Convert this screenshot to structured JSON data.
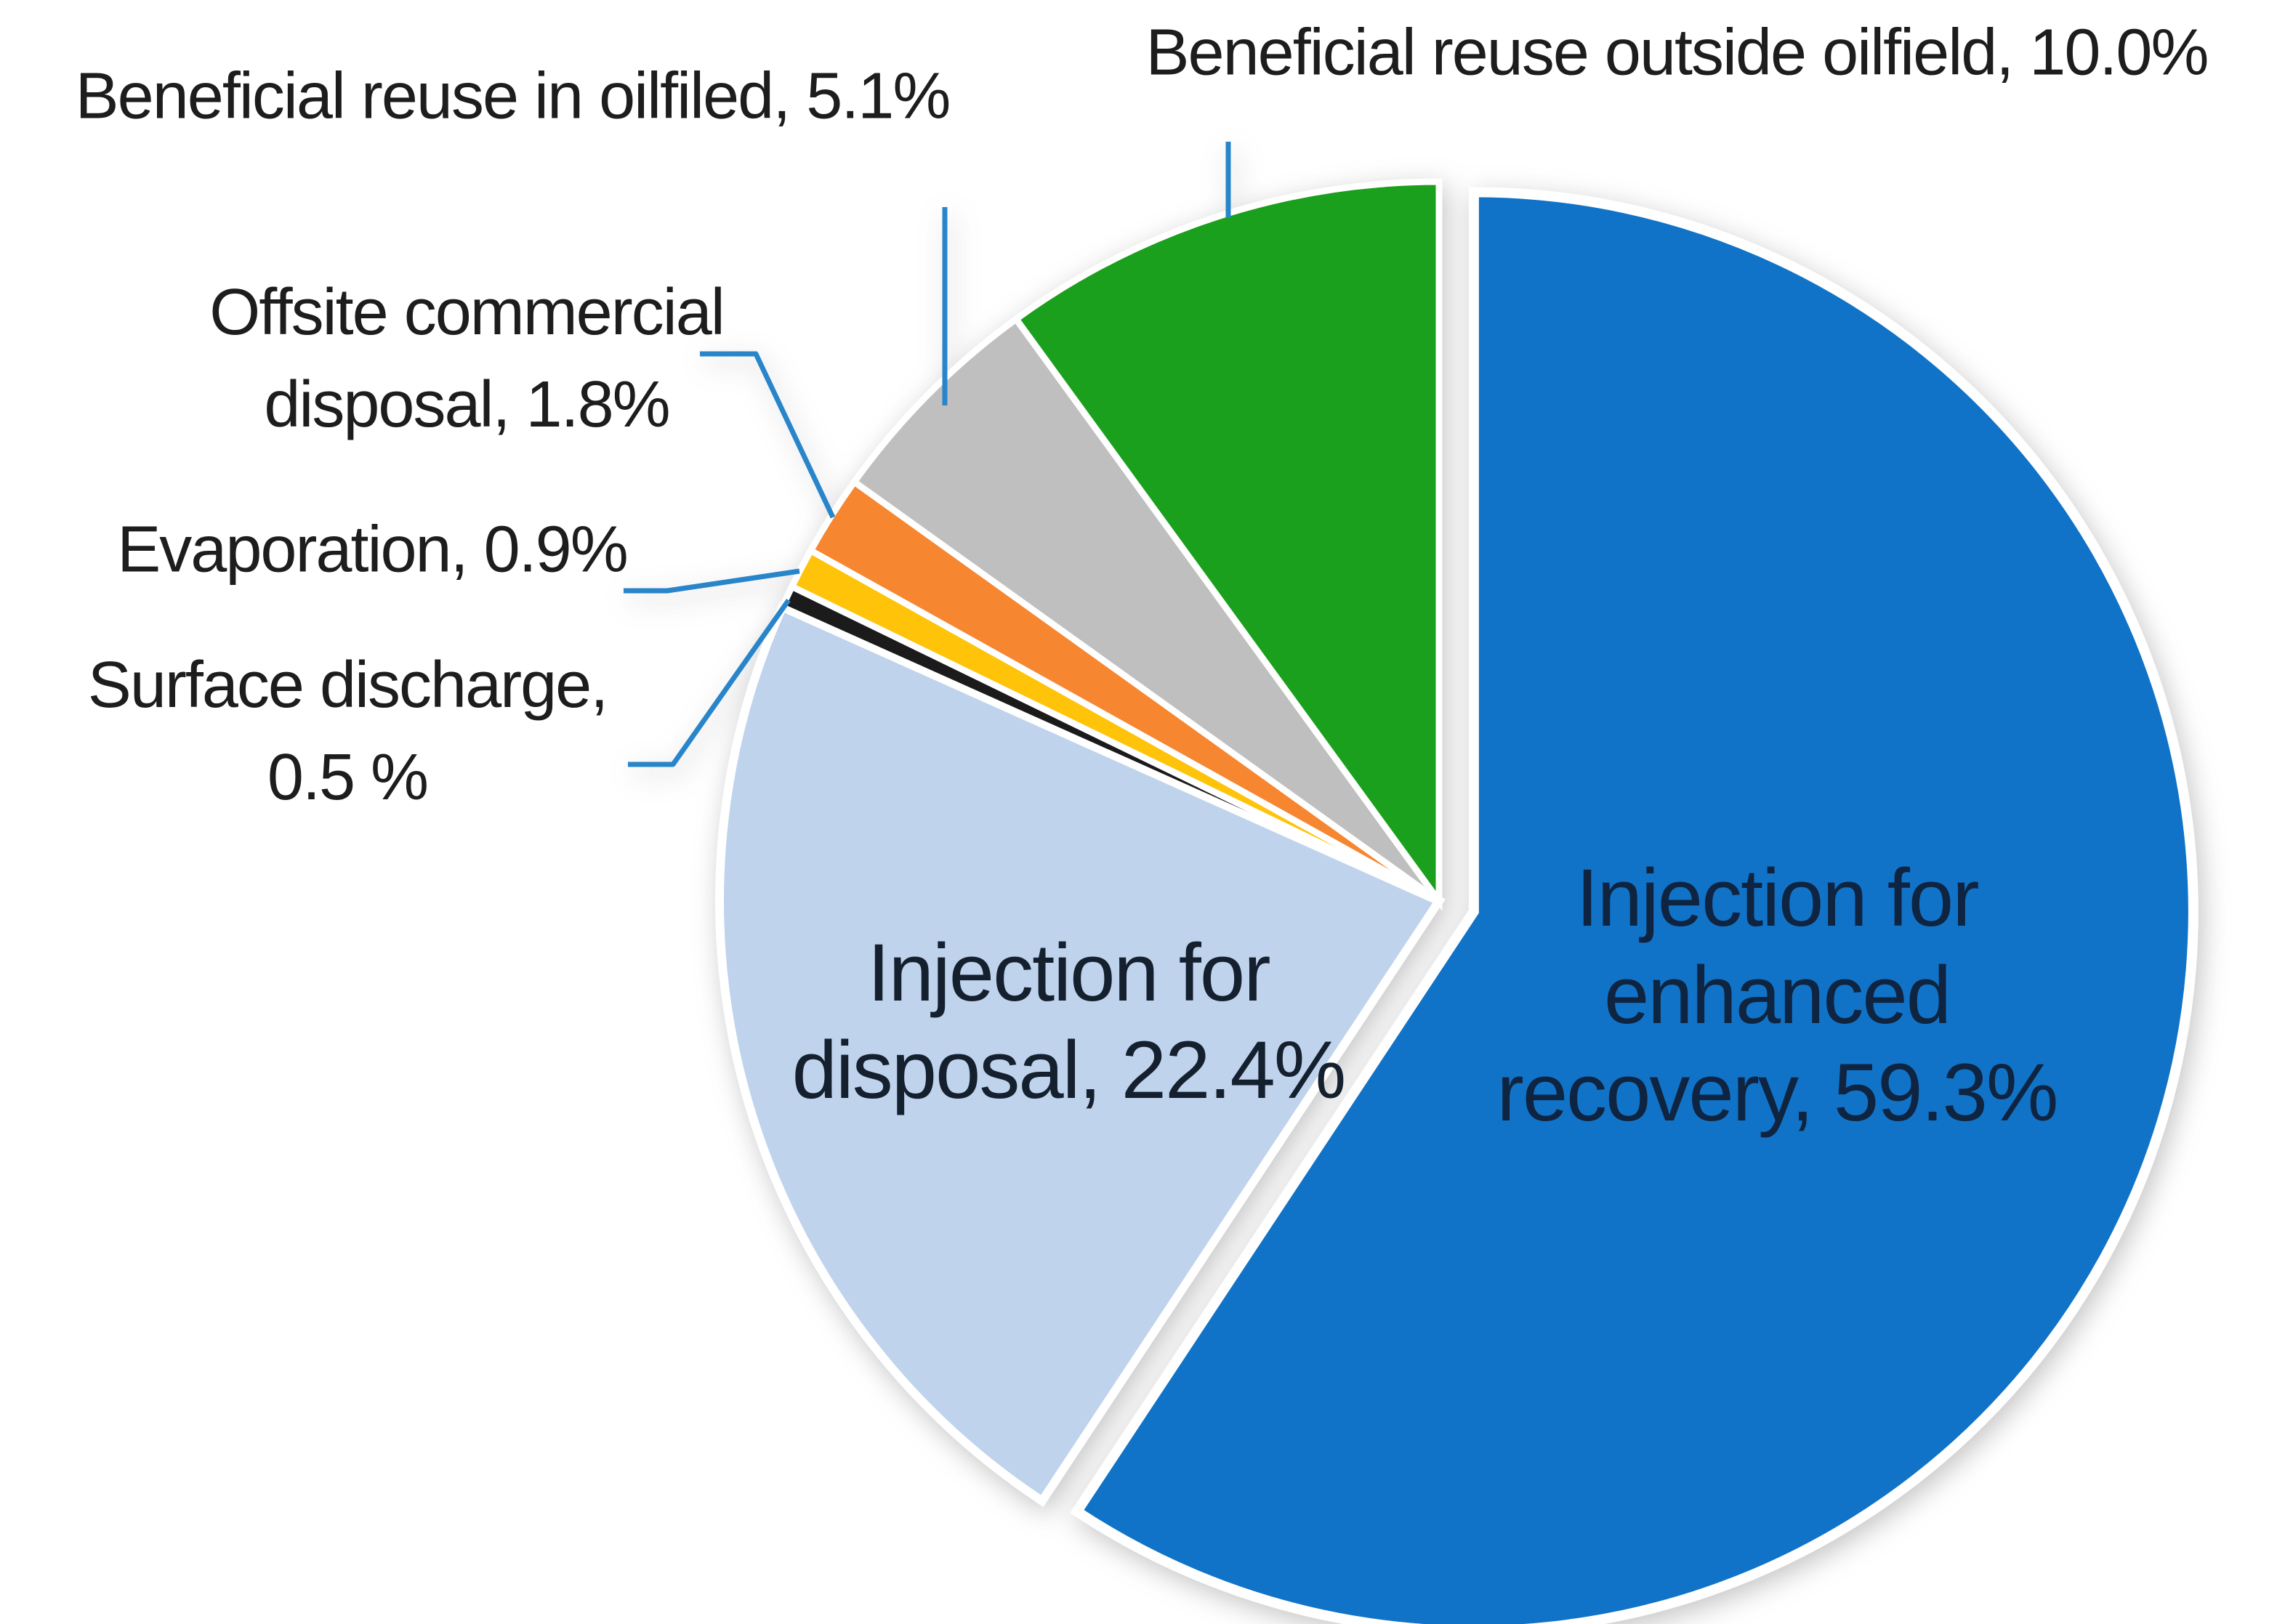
{
  "figure": {
    "background": "#ffffff",
    "kind": "pie chart of produced water management options"
  },
  "chart_data": {
    "type": "pie",
    "title": "",
    "units": "percent",
    "start_angle_deg": 0,
    "direction": "clockwise",
    "order_note": "slices listed clockwise from 12 o'clock",
    "slices": [
      {
        "label": "Injection for enhanced recovery",
        "value": 59.3,
        "color": "#1173C7",
        "exploded": true
      },
      {
        "label": "Injection for disposal",
        "value": 22.4,
        "color": "#BFD3ED",
        "exploded": false
      },
      {
        "label": "Surface discharge",
        "value": 0.5,
        "color": "#1B1B1B",
        "exploded": false
      },
      {
        "label": "Evaporation",
        "value": 0.9,
        "color": "#FFC30A",
        "exploded": false
      },
      {
        "label": "Offsite commercial disposal",
        "value": 1.8,
        "color": "#F68630",
        "exploded": false
      },
      {
        "label": "Beneficial reuse in oilfiled",
        "value": 5.1,
        "color": "#BFBFBF",
        "exploded": false
      },
      {
        "label": "Beneficial reuse outside oilfield",
        "value": 10.0,
        "color": "#1AA01C",
        "exploded": false
      }
    ],
    "legend_position": "none",
    "data_labels": "category name with percent; small slices labeled outside with blue leader lines, large slices labeled inside"
  },
  "labels": {
    "reuse_in_oilfiled": "Beneficial reuse in oilfiled, 5.1%",
    "reuse_outside_oilfield": "Beneficial reuse outside oilfield, 10.0%",
    "offsite_line1": "Offsite commercial",
    "offsite_line2": "disposal, 1.8%",
    "evaporation": "Evaporation, 0.9%",
    "surface_line1": "Surface discharge,",
    "surface_line2": "0.5 %",
    "disposal_line1": "Injection for",
    "disposal_line2": "disposal, 22.4%",
    "enhanced_line1": "Injection for",
    "enhanced_line2": "enhanced",
    "enhanced_line3": "recovery, 59.3%"
  },
  "colors": {
    "leader_line": "#2985CA",
    "label_text": "#1D1D1D",
    "inpie_label_text": "#0E2440"
  }
}
